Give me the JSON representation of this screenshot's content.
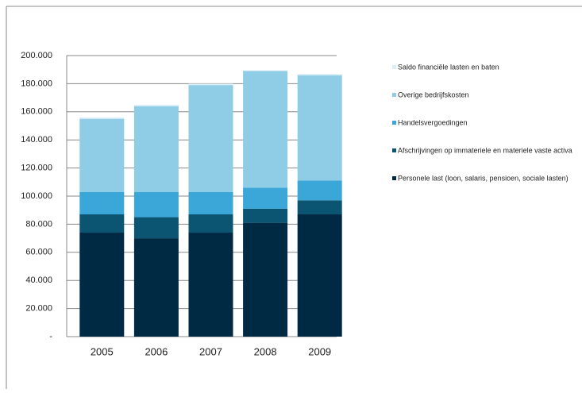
{
  "chart_data": {
    "type": "stacked_bar",
    "categories": [
      "2005",
      "2006",
      "2007",
      "2008",
      "2009"
    ],
    "series": [
      {
        "name": "Personele last (loon, salaris, pensioen, sociale lasten)",
        "color": "#002a44",
        "values": [
          74000,
          70000,
          74000,
          81000,
          87000
        ]
      },
      {
        "name": "Afschrijvingen op immateriele en materiele vaste activa",
        "color": "#0b5472",
        "values": [
          13000,
          15000,
          13000,
          10000,
          10000
        ]
      },
      {
        "name": "Handelsvergoedingen",
        "color": "#3ba7d9",
        "values": [
          16000,
          18000,
          16000,
          15000,
          14000
        ]
      },
      {
        "name": "Overige bedrijfskosten",
        "color": "#8fcde6",
        "values": [
          52000,
          61000,
          76000,
          83000,
          75000
        ]
      },
      {
        "name": "Saldo financiële lasten en baten",
        "color": "#dcefF7",
        "values": [
          1000,
          1000,
          1000,
          500,
          1000
        ]
      }
    ],
    "ylim": [
      0,
      200000
    ],
    "yticks": [
      {
        "value": 0,
        "label": "-"
      },
      {
        "value": 20000,
        "label": "20.000"
      },
      {
        "value": 40000,
        "label": "40.000"
      },
      {
        "value": 60000,
        "label": "60.000"
      },
      {
        "value": 80000,
        "label": "80.000"
      },
      {
        "value": 100000,
        "label": "100.000"
      },
      {
        "value": 120000,
        "label": "120.000"
      },
      {
        "value": 140000,
        "label": "140.000"
      },
      {
        "value": 160000,
        "label": "160.000"
      },
      {
        "value": 180000,
        "label": "180.000"
      },
      {
        "value": 200000,
        "label": "200.000"
      }
    ],
    "grid": true,
    "legend": "right"
  }
}
